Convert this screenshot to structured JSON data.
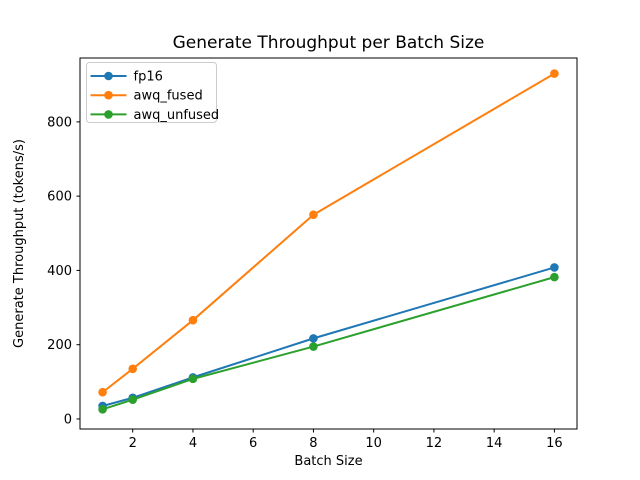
{
  "figure": {
    "background_color": "#ffffff",
    "frame_color": "#000000",
    "legend_border_color": "#cccccc"
  },
  "chart_data": {
    "type": "line",
    "title": "Generate Throughput per Batch Size",
    "xlabel": "Batch Size",
    "ylabel": "Generate Throughput (tokens/s)",
    "x": [
      1,
      2,
      4,
      8,
      16
    ],
    "series": [
      {
        "name": "fp16",
        "color": "#1f77b4",
        "values": [
          35,
          57,
          112,
          217,
          408
        ]
      },
      {
        "name": "awq_fused",
        "color": "#ff7f0e",
        "values": [
          72,
          135,
          266,
          550,
          930
        ]
      },
      {
        "name": "awq_unfused",
        "color": "#2ca02c",
        "values": [
          26,
          52,
          108,
          195,
          382
        ]
      }
    ],
    "xticks": [
      2,
      4,
      6,
      8,
      10,
      12,
      14,
      16
    ],
    "yticks": [
      0,
      200,
      400,
      600,
      800
    ],
    "xlim": [
      0.25,
      16.75
    ],
    "ylim": [
      -27,
      972
    ],
    "grid": false,
    "marker": "circle",
    "legend_position": "upper left"
  }
}
